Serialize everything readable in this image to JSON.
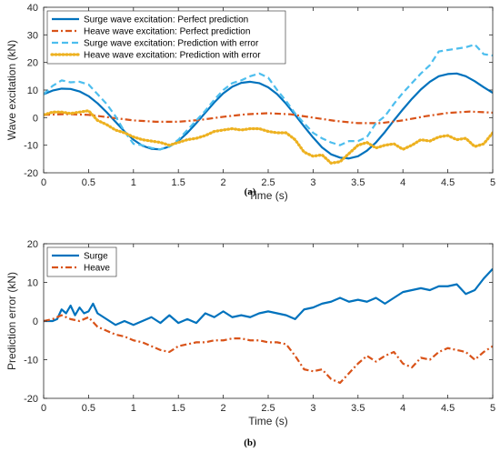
{
  "chart_data": [
    {
      "type": "line",
      "caption": "(a)",
      "xlabel": "Time (s)",
      "ylabel": "Wave excitation (kN)",
      "xlim": [
        0,
        5
      ],
      "ylim": [
        -20,
        40
      ],
      "xticks": [
        0,
        0.5,
        1,
        1.5,
        2,
        2.5,
        3,
        3.5,
        4,
        4.5,
        5
      ],
      "xtick_labels": [
        "0",
        "0.5",
        "1",
        "1.5",
        "2",
        "2.5",
        "3",
        "3.5",
        "4",
        "4.5",
        "5"
      ],
      "yticks": [
        -20,
        -10,
        0,
        10,
        20,
        30,
        40
      ],
      "ytick_labels": [
        "-20",
        "-10",
        "0",
        "10",
        "20",
        "30",
        "40"
      ],
      "grid": false,
      "legend_position": "top-left",
      "series": [
        {
          "name": "Surge wave excitation: Perfect prediction",
          "color": "#0072BD",
          "style": "solid",
          "x": [
            0,
            0.1,
            0.2,
            0.3,
            0.4,
            0.5,
            0.6,
            0.7,
            0.8,
            0.9,
            1.0,
            1.1,
            1.2,
            1.3,
            1.4,
            1.5,
            1.6,
            1.7,
            1.8,
            1.9,
            2.0,
            2.1,
            2.2,
            2.3,
            2.4,
            2.5,
            2.6,
            2.7,
            2.8,
            2.9,
            3.0,
            3.1,
            3.2,
            3.3,
            3.4,
            3.5,
            3.6,
            3.7,
            3.8,
            3.9,
            4.0,
            4.1,
            4.2,
            4.3,
            4.4,
            4.5,
            4.6,
            4.7,
            4.8,
            4.9,
            5.0
          ],
          "y": [
            8.5,
            9.8,
            10.5,
            10.4,
            9.5,
            7.8,
            5.2,
            2.0,
            -1.5,
            -5.0,
            -8.0,
            -10.2,
            -11.3,
            -11.5,
            -10.5,
            -8.5,
            -5.5,
            -2.0,
            1.8,
            5.5,
            8.8,
            11.2,
            12.6,
            13.0,
            12.5,
            11.0,
            8.5,
            5.0,
            1.0,
            -3.2,
            -7.2,
            -10.8,
            -13.3,
            -14.5,
            -14.8,
            -14.0,
            -12.0,
            -9.0,
            -5.2,
            -1.0,
            3.0,
            6.8,
            10.2,
            13.0,
            15.0,
            15.8,
            16.0,
            15.0,
            13.2,
            11.0,
            9.0
          ]
        },
        {
          "name": "Heave wave excitation: Perfect prediction",
          "color": "#D95319",
          "style": "dashdot",
          "x": [
            0,
            0.25,
            0.5,
            0.75,
            1.0,
            1.25,
            1.5,
            1.75,
            2.0,
            2.25,
            2.5,
            2.75,
            3.0,
            3.25,
            3.5,
            3.75,
            4.0,
            4.25,
            4.5,
            4.75,
            5.0
          ],
          "y": [
            1.0,
            1.3,
            1.0,
            0.0,
            -1.0,
            -1.5,
            -1.5,
            -0.8,
            0.3,
            1.2,
            1.6,
            1.2,
            0.0,
            -1.2,
            -2.0,
            -2.0,
            -1.0,
            0.5,
            1.7,
            2.2,
            1.8
          ]
        },
        {
          "name": "Surge wave excitation: Prediction with error",
          "color": "#4DBEEE",
          "style": "dashed",
          "x": [
            0,
            0.1,
            0.2,
            0.3,
            0.4,
            0.5,
            0.6,
            0.7,
            0.8,
            0.9,
            1.0,
            1.1,
            1.2,
            1.3,
            1.4,
            1.5,
            1.6,
            1.7,
            1.8,
            1.9,
            2.0,
            2.1,
            2.2,
            2.3,
            2.4,
            2.5,
            2.6,
            2.7,
            2.8,
            2.9,
            3.0,
            3.1,
            3.2,
            3.3,
            3.4,
            3.5,
            3.6,
            3.7,
            3.8,
            3.9,
            4.0,
            4.1,
            4.2,
            4.3,
            4.4,
            4.5,
            4.6,
            4.7,
            4.8,
            4.9,
            5.0
          ],
          "y": [
            8.5,
            11.5,
            13.5,
            12.8,
            13.0,
            12.0,
            8.5,
            5.0,
            0.5,
            -5.0,
            -9.5,
            -10.0,
            -11.0,
            -11.5,
            -10.5,
            -8.0,
            -4.5,
            -1.0,
            2.5,
            6.5,
            10.0,
            12.5,
            13.5,
            15.0,
            16.0,
            14.5,
            10.0,
            6.0,
            1.5,
            -2.0,
            -5.5,
            -7.5,
            -9.0,
            -10.0,
            -8.5,
            -8.5,
            -7.0,
            -2.0,
            0.5,
            5.0,
            9.0,
            12.5,
            16.0,
            19.0,
            24.0,
            24.5,
            25.0,
            25.5,
            26.5,
            23.0,
            22.5
          ]
        },
        {
          "name": "Heave wave excitation: Prediction with error",
          "color": "#EDB120",
          "style": "dotted",
          "x": [
            0,
            0.1,
            0.2,
            0.3,
            0.4,
            0.5,
            0.6,
            0.7,
            0.8,
            0.9,
            1.0,
            1.1,
            1.2,
            1.3,
            1.4,
            1.5,
            1.6,
            1.7,
            1.8,
            1.9,
            2.0,
            2.1,
            2.2,
            2.3,
            2.4,
            2.5,
            2.6,
            2.7,
            2.8,
            2.9,
            3.0,
            3.1,
            3.2,
            3.3,
            3.4,
            3.5,
            3.6,
            3.7,
            3.8,
            3.9,
            4.0,
            4.1,
            4.2,
            4.3,
            4.4,
            4.5,
            4.6,
            4.7,
            4.8,
            4.9,
            5.0
          ],
          "y": [
            1.0,
            2.0,
            2.0,
            1.5,
            2.0,
            2.5,
            -1.0,
            -2.5,
            -4.5,
            -5.5,
            -7.0,
            -8.0,
            -8.5,
            -9.0,
            -10.0,
            -9.0,
            -8.0,
            -7.5,
            -6.5,
            -5.0,
            -4.5,
            -4.0,
            -4.5,
            -4.0,
            -4.0,
            -5.0,
            -5.5,
            -5.5,
            -8.0,
            -12.5,
            -14.0,
            -13.5,
            -16.5,
            -16.0,
            -13.0,
            -10.0,
            -9.0,
            -11.0,
            -10.0,
            -9.5,
            -11.5,
            -10.0,
            -8.0,
            -8.5,
            -7.0,
            -6.5,
            -8.0,
            -7.5,
            -10.5,
            -9.5,
            -5.5
          ]
        }
      ]
    },
    {
      "type": "line",
      "caption": "(b)",
      "xlabel": "Time (s)",
      "ylabel": "Prediction error (kN)",
      "xlim": [
        0,
        5
      ],
      "ylim": [
        -20,
        20
      ],
      "xticks": [
        0,
        0.5,
        1,
        1.5,
        2,
        2.5,
        3,
        3.5,
        4,
        4.5,
        5
      ],
      "xtick_labels": [
        "0",
        "0.5",
        "1",
        "1.5",
        "2",
        "2.5",
        "3",
        "3.5",
        "4",
        "4.5",
        "5"
      ],
      "yticks": [
        -20,
        -10,
        0,
        10,
        20
      ],
      "ytick_labels": [
        "-20",
        "-10",
        "0",
        "10",
        "20"
      ],
      "grid": false,
      "legend_position": "top-left",
      "series": [
        {
          "name": "Surge",
          "color": "#0072BD",
          "style": "solid",
          "x": [
            0,
            0.1,
            0.15,
            0.2,
            0.25,
            0.3,
            0.35,
            0.4,
            0.45,
            0.5,
            0.55,
            0.6,
            0.7,
            0.8,
            0.9,
            1.0,
            1.1,
            1.2,
            1.3,
            1.4,
            1.5,
            1.6,
            1.7,
            1.8,
            1.9,
            2.0,
            2.1,
            2.2,
            2.3,
            2.4,
            2.5,
            2.6,
            2.7,
            2.8,
            2.9,
            3.0,
            3.1,
            3.2,
            3.3,
            3.4,
            3.5,
            3.6,
            3.7,
            3.8,
            3.9,
            4.0,
            4.1,
            4.2,
            4.3,
            4.4,
            4.5,
            4.6,
            4.7,
            4.8,
            4.9,
            5.0
          ],
          "y": [
            0,
            0,
            0.5,
            3.0,
            2.0,
            4.0,
            1.5,
            3.5,
            2.0,
            2.5,
            4.5,
            2.0,
            0.5,
            -1.0,
            0,
            -1.0,
            0,
            1.0,
            -0.5,
            1.5,
            -0.5,
            0.5,
            -0.5,
            2.0,
            1.0,
            2.5,
            1.0,
            1.5,
            1.0,
            2.0,
            2.5,
            2.0,
            1.5,
            0.5,
            3.0,
            3.5,
            4.5,
            5.0,
            6.0,
            5.0,
            5.5,
            5.0,
            6.0,
            4.5,
            6.0,
            7.5,
            8.0,
            8.5,
            8.0,
            9.0,
            9.0,
            9.5,
            7.0,
            8.0,
            11.0,
            13.5
          ]
        },
        {
          "name": "Heave",
          "color": "#D95319",
          "style": "dashdot",
          "x": [
            0,
            0.1,
            0.2,
            0.3,
            0.4,
            0.5,
            0.6,
            0.7,
            0.8,
            0.9,
            1.0,
            1.1,
            1.2,
            1.3,
            1.4,
            1.5,
            1.6,
            1.7,
            1.8,
            1.9,
            2.0,
            2.1,
            2.2,
            2.3,
            2.4,
            2.5,
            2.6,
            2.7,
            2.8,
            2.9,
            3.0,
            3.1,
            3.2,
            3.3,
            3.4,
            3.5,
            3.6,
            3.7,
            3.8,
            3.9,
            4.0,
            4.1,
            4.2,
            4.3,
            4.4,
            4.5,
            4.6,
            4.7,
            4.8,
            4.9,
            5.0
          ],
          "y": [
            0,
            0.5,
            1.5,
            0.5,
            0,
            1.0,
            -1.5,
            -2.5,
            -3.5,
            -4.0,
            -5.0,
            -5.5,
            -6.5,
            -7.5,
            -8.0,
            -6.5,
            -6.0,
            -5.5,
            -5.5,
            -5.0,
            -5.0,
            -4.5,
            -4.5,
            -5.0,
            -5.0,
            -5.5,
            -5.5,
            -6.0,
            -9.0,
            -12.5,
            -13.0,
            -12.5,
            -15.0,
            -16.0,
            -13.5,
            -11.0,
            -9.0,
            -10.5,
            -9.0,
            -8.0,
            -11.0,
            -12.0,
            -9.5,
            -10.0,
            -8.0,
            -7.0,
            -7.5,
            -8.0,
            -10.0,
            -8.0,
            -6.5
          ]
        }
      ]
    }
  ]
}
